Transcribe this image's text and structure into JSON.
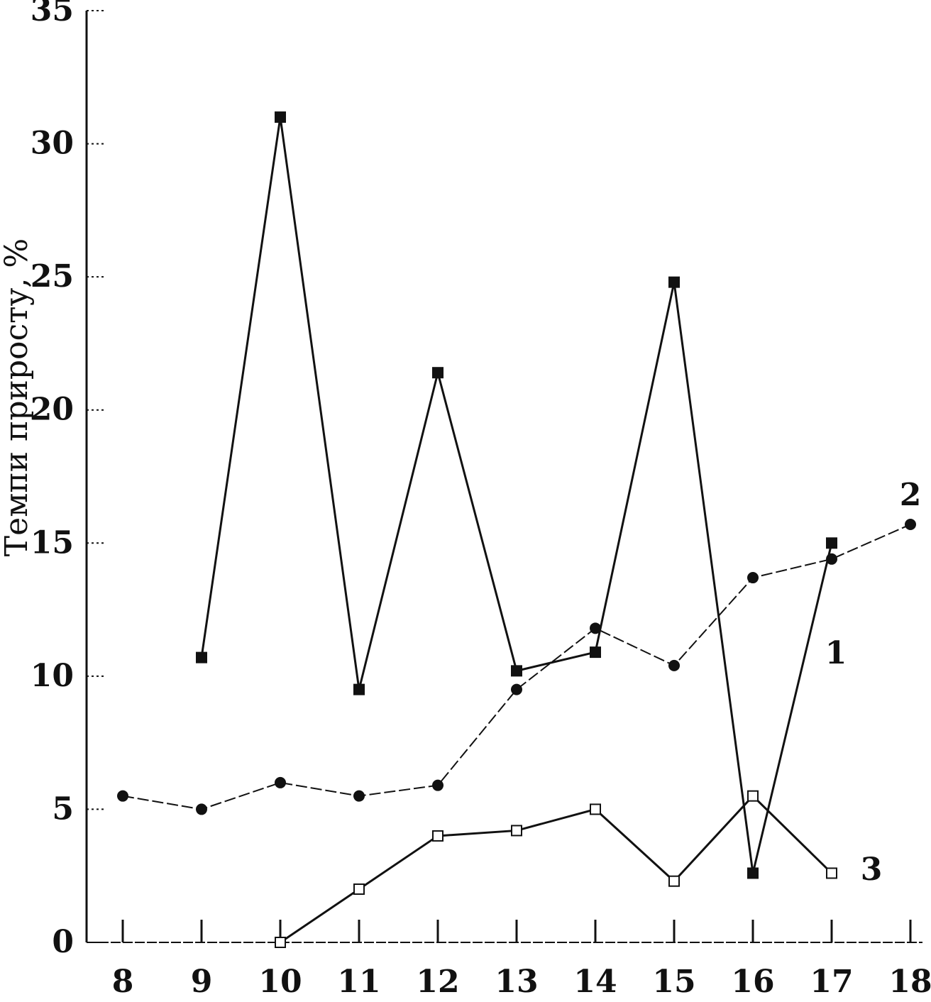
{
  "chart_data": {
    "type": "line",
    "title": "",
    "xlabel": "",
    "ylabel": "Темпи приросту, %",
    "x_ticks": [
      "8",
      "9",
      "10",
      "11",
      "12",
      "13",
      "14",
      "15",
      "16",
      "17",
      "18"
    ],
    "y_ticks": [
      "0",
      "5",
      "10",
      "15",
      "20",
      "25",
      "30",
      "35"
    ],
    "xlim": [
      7.5,
      18.2
    ],
    "ylim": [
      0,
      35
    ],
    "grid": false,
    "series": [
      {
        "name": "1",
        "style": "solid-filled-square",
        "x": [
          9,
          10,
          11,
          12,
          13,
          14,
          15,
          16,
          17
        ],
        "y": [
          10.7,
          31,
          9.5,
          21.4,
          10.2,
          10.9,
          24.8,
          2.6,
          15
        ]
      },
      {
        "name": "2",
        "style": "dashed-filled-circle",
        "x": [
          8,
          9,
          10,
          11,
          12,
          13,
          14,
          15,
          16,
          17,
          18
        ],
        "y": [
          5.5,
          5,
          6,
          5.5,
          5.9,
          9.5,
          11.8,
          10.4,
          13.7,
          14.4,
          15.7
        ]
      },
      {
        "name": "3",
        "style": "solid-open-square",
        "x": [
          10,
          11,
          12,
          13,
          14,
          15,
          16,
          17
        ],
        "y": [
          0,
          2,
          4,
          4.2,
          5,
          2.3,
          5.5,
          2.6
        ]
      }
    ]
  }
}
